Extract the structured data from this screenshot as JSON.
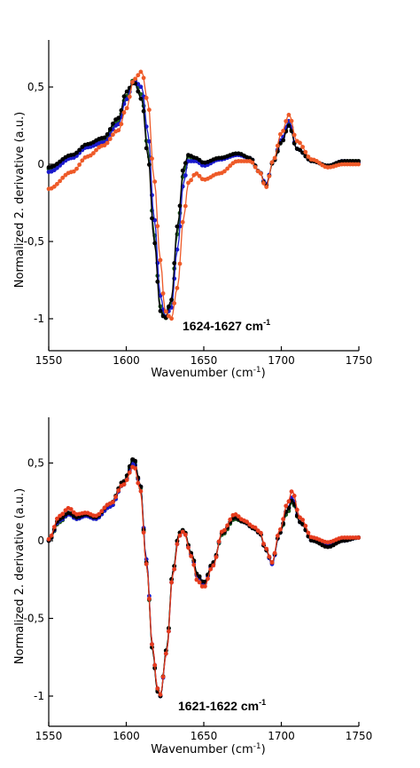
{
  "chart_data": [
    {
      "type": "line",
      "xlabel": "Wavenumber (cm",
      "xlabel_sup": "-1",
      "xlabel_close": ")",
      "ylabel": "Normalized 2. derivative (a.u.)",
      "xlim": [
        1550,
        1750
      ],
      "ylim": [
        -1.2,
        0.8
      ],
      "xticks": [
        1550,
        1600,
        1650,
        1700,
        1750
      ],
      "yticks": [
        0.5,
        0,
        -0.5,
        -1
      ],
      "ytick_labels": [
        "0,5",
        "0",
        "-0,5",
        "-1"
      ],
      "annotation": "1624-1627 cm",
      "annotation_sup": "-1",
      "series": [
        {
          "color": "#1e5c1e",
          "x": [
            1550,
            1565,
            1575,
            1585,
            1595,
            1600,
            1605,
            1610,
            1614,
            1618,
            1622,
            1625,
            1629,
            1633,
            1637,
            1640,
            1645,
            1650,
            1660,
            1672,
            1680,
            1686,
            1690,
            1695,
            1700,
            1705,
            1710,
            1720,
            1730,
            1740,
            1750
          ],
          "values": [
            -0.03,
            0.05,
            0.12,
            0.16,
            0.28,
            0.44,
            0.55,
            0.45,
            0.1,
            -0.45,
            -0.92,
            -1.0,
            -0.9,
            -0.45,
            -0.06,
            0.05,
            0.03,
            0.0,
            0.04,
            0.07,
            0.04,
            -0.05,
            -0.14,
            0.02,
            0.14,
            0.26,
            0.1,
            0.02,
            -0.01,
            0.02,
            0.02
          ]
        },
        {
          "color": "#1a1acc",
          "x": [
            1550,
            1565,
            1575,
            1585,
            1595,
            1600,
            1605,
            1610,
            1614,
            1618,
            1622,
            1625,
            1629,
            1633,
            1637,
            1640,
            1645,
            1650,
            1660,
            1672,
            1680,
            1686,
            1690,
            1695,
            1700,
            1705,
            1710,
            1720,
            1730,
            1740,
            1750
          ],
          "values": [
            -0.05,
            0.04,
            0.11,
            0.14,
            0.26,
            0.42,
            0.54,
            0.5,
            0.2,
            -0.35,
            -0.85,
            -0.99,
            -0.93,
            -0.55,
            -0.12,
            0.02,
            0.02,
            -0.01,
            0.03,
            0.06,
            0.04,
            -0.05,
            -0.13,
            0.02,
            0.16,
            0.28,
            0.1,
            0.02,
            -0.01,
            0.02,
            0.01
          ]
        },
        {
          "color": "#000000",
          "x": [
            1550,
            1565,
            1575,
            1585,
            1595,
            1600,
            1605,
            1610,
            1614,
            1618,
            1622,
            1625,
            1629,
            1633,
            1637,
            1640,
            1645,
            1650,
            1660,
            1672,
            1680,
            1686,
            1690,
            1695,
            1700,
            1705,
            1710,
            1720,
            1730,
            1740,
            1750
          ],
          "values": [
            -0.02,
            0.06,
            0.13,
            0.17,
            0.3,
            0.47,
            0.53,
            0.42,
            0.05,
            -0.5,
            -0.95,
            -1.0,
            -0.88,
            -0.4,
            -0.02,
            0.06,
            0.04,
            0.01,
            0.04,
            0.07,
            0.04,
            -0.05,
            -0.14,
            0.02,
            0.14,
            0.25,
            0.1,
            0.02,
            -0.01,
            0.02,
            0.02
          ]
        },
        {
          "color": "#ee5a28",
          "x": [
            1550,
            1565,
            1575,
            1585,
            1595,
            1600,
            1605,
            1610,
            1614,
            1618,
            1622,
            1625,
            1629,
            1633,
            1637,
            1640,
            1645,
            1650,
            1660,
            1672,
            1680,
            1686,
            1690,
            1695,
            1700,
            1705,
            1710,
            1720,
            1730,
            1740,
            1750
          ],
          "values": [
            -0.16,
            -0.05,
            0.05,
            0.12,
            0.22,
            0.36,
            0.55,
            0.6,
            0.4,
            -0.1,
            -0.62,
            -0.95,
            -1.0,
            -0.8,
            -0.35,
            -0.12,
            -0.06,
            -0.1,
            -0.06,
            0.02,
            0.02,
            -0.05,
            -0.15,
            0.03,
            0.2,
            0.32,
            0.15,
            0.03,
            -0.02,
            0.0,
            0.0
          ]
        }
      ]
    },
    {
      "type": "line",
      "xlabel": "Wavenumber (cm",
      "xlabel_sup": "-1",
      "xlabel_close": ")",
      "ylabel": "Normalized 2. derivative (a.u.)",
      "xlim": [
        1550,
        1750
      ],
      "ylim": [
        -1.2,
        0.8
      ],
      "xticks": [
        1550,
        1600,
        1650,
        1700,
        1750
      ],
      "yticks": [
        0.5,
        0,
        -0.5,
        -1
      ],
      "ytick_labels": [
        "0,5",
        "0",
        "-0,5",
        "-1"
      ],
      "annotation": "1621-1622 cm",
      "annotation_sup": "-1",
      "series": [
        {
          "color": "#1e5c1e",
          "x": [
            1550,
            1557,
            1563,
            1568,
            1574,
            1580,
            1590,
            1598,
            1605,
            1609,
            1613,
            1617,
            1620,
            1622,
            1626,
            1630,
            1634,
            1637,
            1642,
            1646,
            1650,
            1656,
            1662,
            1670,
            1676,
            1682,
            1686,
            1690,
            1694,
            1699,
            1704,
            1707,
            1712,
            1720,
            1730,
            1740,
            1750
          ],
          "values": [
            0.0,
            0.12,
            0.17,
            0.14,
            0.16,
            0.14,
            0.22,
            0.36,
            0.52,
            0.35,
            -0.15,
            -0.7,
            -0.96,
            -1.0,
            -0.7,
            -0.2,
            0.05,
            0.07,
            -0.08,
            -0.22,
            -0.27,
            -0.15,
            0.04,
            0.14,
            0.12,
            0.08,
            0.05,
            -0.06,
            -0.14,
            0.05,
            0.18,
            0.25,
            0.12,
            0.0,
            -0.03,
            0.0,
            0.02
          ]
        },
        {
          "color": "#1a1acc",
          "x": [
            1550,
            1557,
            1563,
            1568,
            1574,
            1580,
            1590,
            1598,
            1605,
            1609,
            1613,
            1617,
            1620,
            1622,
            1626,
            1630,
            1634,
            1637,
            1642,
            1646,
            1650,
            1656,
            1662,
            1670,
            1676,
            1682,
            1686,
            1690,
            1694,
            1699,
            1704,
            1707,
            1712,
            1720,
            1730,
            1740,
            1750
          ],
          "values": [
            0.0,
            0.13,
            0.17,
            0.14,
            0.16,
            0.14,
            0.22,
            0.36,
            0.5,
            0.36,
            -0.12,
            -0.68,
            -0.95,
            -1.0,
            -0.72,
            -0.22,
            0.03,
            0.06,
            -0.09,
            -0.23,
            -0.28,
            -0.15,
            0.05,
            0.15,
            0.12,
            0.08,
            0.05,
            -0.06,
            -0.15,
            0.05,
            0.2,
            0.28,
            0.12,
            0.0,
            -0.03,
            0.0,
            0.02
          ]
        },
        {
          "color": "#000000",
          "x": [
            1550,
            1557,
            1563,
            1568,
            1574,
            1580,
            1590,
            1598,
            1605,
            1609,
            1613,
            1617,
            1620,
            1622,
            1626,
            1630,
            1634,
            1637,
            1642,
            1646,
            1650,
            1656,
            1662,
            1670,
            1676,
            1682,
            1686,
            1690,
            1694,
            1699,
            1704,
            1707,
            1712,
            1720,
            1730,
            1740,
            1750
          ],
          "values": [
            0.0,
            0.14,
            0.18,
            0.15,
            0.17,
            0.15,
            0.24,
            0.38,
            0.53,
            0.36,
            -0.14,
            -0.7,
            -0.97,
            -1.0,
            -0.7,
            -0.2,
            0.05,
            0.07,
            -0.08,
            -0.22,
            -0.27,
            -0.14,
            0.05,
            0.15,
            0.12,
            0.08,
            0.05,
            -0.06,
            -0.14,
            0.05,
            0.2,
            0.26,
            0.12,
            0.0,
            -0.04,
            0.0,
            0.02
          ]
        },
        {
          "color": "#e63c1e",
          "x": [
            1550,
            1557,
            1563,
            1568,
            1574,
            1580,
            1590,
            1598,
            1605,
            1609,
            1613,
            1617,
            1620,
            1622,
            1626,
            1630,
            1634,
            1637,
            1642,
            1646,
            1650,
            1656,
            1662,
            1670,
            1676,
            1682,
            1686,
            1690,
            1694,
            1699,
            1704,
            1707,
            1712,
            1720,
            1730,
            1740,
            1750
          ],
          "values": [
            0.01,
            0.16,
            0.21,
            0.17,
            0.18,
            0.16,
            0.24,
            0.36,
            0.48,
            0.33,
            -0.15,
            -0.68,
            -0.95,
            -0.99,
            -0.72,
            -0.22,
            0.03,
            0.06,
            -0.1,
            -0.26,
            -0.3,
            -0.16,
            0.06,
            0.17,
            0.13,
            0.09,
            0.06,
            -0.05,
            -0.14,
            0.07,
            0.24,
            0.32,
            0.15,
            0.02,
            -0.01,
            0.02,
            0.02
          ]
        }
      ]
    }
  ]
}
